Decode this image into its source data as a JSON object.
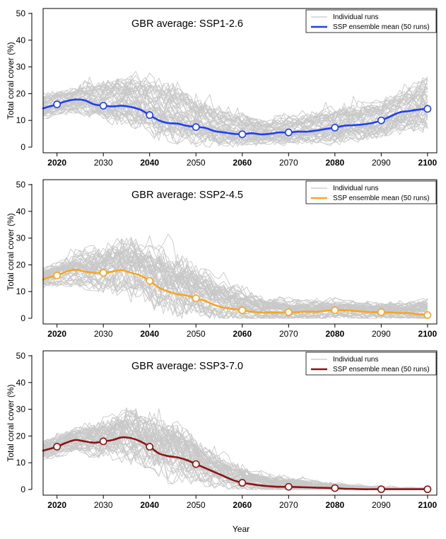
{
  "figure": {
    "xlabel": "Year"
  },
  "colors": {
    "individual_runs": "#c8c8c8",
    "ssp126": "#1f3ff2",
    "ssp245": "#f5a623",
    "ssp370": "#8b1414"
  },
  "chart_data": [
    {
      "type": "line",
      "title": "GBR average: SSP1-2.6",
      "xlabel": "",
      "ylabel": "Total coral cover (%)",
      "xlim": [
        2017,
        2102
      ],
      "ylim": [
        0,
        50
      ],
      "xticks": [
        2020,
        2030,
        2040,
        2050,
        2060,
        2070,
        2080,
        2090,
        2100
      ],
      "xtick_bold": [
        true,
        false,
        true,
        false,
        true,
        false,
        true,
        false,
        true
      ],
      "yticks": [
        0,
        10,
        20,
        30,
        40,
        50
      ],
      "grid": false,
      "legend_position": "top-right",
      "legend": [
        "Individual runs",
        "SSP ensemble mean (50 runs)"
      ],
      "mean_color": "#1f3ff2",
      "runs_color": "#c8c8c8",
      "runs_count": 50,
      "runs_note": "",
      "series": [
        {
          "name": "SSP ensemble mean (50 runs)",
          "x": [
            2017,
            2018,
            2020,
            2022,
            2024,
            2026,
            2028,
            2030,
            2032,
            2034,
            2036,
            2038,
            2040,
            2042,
            2044,
            2046,
            2048,
            2050,
            2052,
            2054,
            2056,
            2058,
            2060,
            2062,
            2064,
            2066,
            2068,
            2070,
            2072,
            2074,
            2076,
            2078,
            2080,
            2082,
            2084,
            2086,
            2088,
            2090,
            2092,
            2094,
            2096,
            2098,
            2100
          ],
          "y": [
            14.5,
            15.0,
            16.0,
            17.2,
            17.8,
            17.5,
            16.0,
            15.5,
            15.2,
            15.5,
            15.0,
            14.0,
            12.0,
            10.0,
            9.0,
            8.8,
            8.0,
            7.5,
            7.2,
            6.0,
            5.5,
            5.0,
            4.8,
            5.2,
            4.8,
            5.0,
            5.5,
            5.5,
            5.8,
            5.8,
            6.2,
            6.8,
            7.3,
            8.0,
            8.2,
            8.5,
            9.0,
            10.0,
            11.5,
            13.0,
            13.5,
            14.0,
            14.3
          ]
        }
      ],
      "markers": {
        "x": [
          2020,
          2030,
          2040,
          2050,
          2060,
          2070,
          2080,
          2090,
          2100
        ],
        "y": [
          16.0,
          15.5,
          12.0,
          7.5,
          4.8,
          5.5,
          7.3,
          10.0,
          14.3
        ]
      },
      "ensemble_band": {
        "x": [
          2017,
          2025,
          2035,
          2045,
          2055,
          2065,
          2075,
          2085,
          2095,
          2100
        ],
        "low": [
          11,
          12,
          9,
          4,
          1.5,
          1,
          1.5,
          2,
          5,
          7
        ],
        "high": [
          19,
          22,
          28,
          25,
          15,
          10,
          13,
          15,
          20,
          28
        ]
      }
    },
    {
      "type": "line",
      "title": "GBR average: SSP2-4.5",
      "xlabel": "",
      "ylabel": "Total coral cover (%)",
      "xlim": [
        2017,
        2102
      ],
      "ylim": [
        0,
        50
      ],
      "xticks": [
        2020,
        2030,
        2040,
        2050,
        2060,
        2070,
        2080,
        2090,
        2100
      ],
      "xtick_bold": [
        true,
        false,
        true,
        false,
        true,
        false,
        true,
        false,
        true
      ],
      "yticks": [
        0,
        10,
        20,
        30,
        40,
        50
      ],
      "grid": false,
      "legend_position": "top-right",
      "legend": [
        "Individual runs",
        "SSP ensemble mean (50 runs)"
      ],
      "mean_color": "#f5a623",
      "runs_color": "#c8c8c8",
      "runs_count": 50,
      "runs_note": "",
      "series": [
        {
          "name": "SSP ensemble mean (50 runs)",
          "x": [
            2017,
            2018,
            2020,
            2022,
            2024,
            2026,
            2028,
            2030,
            2032,
            2034,
            2036,
            2038,
            2040,
            2042,
            2044,
            2046,
            2048,
            2050,
            2052,
            2054,
            2056,
            2058,
            2060,
            2062,
            2064,
            2066,
            2068,
            2070,
            2072,
            2074,
            2076,
            2078,
            2080,
            2082,
            2084,
            2086,
            2088,
            2090,
            2092,
            2094,
            2096,
            2098,
            2100
          ],
          "y": [
            14.5,
            15.2,
            16.0,
            17.5,
            18.2,
            17.5,
            17.0,
            17.0,
            17.5,
            18.0,
            17.0,
            16.0,
            14.0,
            11.5,
            10.0,
            9.0,
            8.5,
            7.5,
            6.5,
            5.0,
            4.0,
            3.5,
            3.0,
            2.5,
            2.2,
            2.2,
            2.2,
            2.3,
            2.3,
            2.5,
            2.5,
            2.8,
            3.0,
            3.0,
            2.8,
            2.5,
            2.3,
            2.3,
            2.2,
            2.0,
            2.0,
            1.5,
            1.2
          ]
        }
      ],
      "markers": {
        "x": [
          2020,
          2030,
          2040,
          2050,
          2060,
          2070,
          2080,
          2090,
          2100
        ],
        "y": [
          16.0,
          17.0,
          14.0,
          7.5,
          3.0,
          2.3,
          3.0,
          2.3,
          1.2
        ]
      },
      "ensemble_band": {
        "x": [
          2017,
          2025,
          2035,
          2045,
          2055,
          2065,
          2075,
          2085,
          2095,
          2100
        ],
        "low": [
          12,
          12,
          9,
          3,
          0.5,
          0,
          0,
          0,
          0,
          0
        ],
        "high": [
          19,
          24,
          31,
          27,
          16,
          8,
          7,
          6,
          6,
          9
        ]
      }
    },
    {
      "type": "line",
      "title": "GBR average: SSP3-7.0",
      "xlabel": "",
      "ylabel": "Total coral cover (%)",
      "xlim": [
        2017,
        2102
      ],
      "ylim": [
        0,
        50
      ],
      "xticks": [
        2020,
        2030,
        2040,
        2050,
        2060,
        2070,
        2080,
        2090,
        2100
      ],
      "xtick_bold": [
        true,
        false,
        true,
        false,
        true,
        false,
        true,
        false,
        true
      ],
      "yticks": [
        0,
        10,
        20,
        30,
        40,
        50
      ],
      "grid": false,
      "legend_position": "top-right",
      "legend": [
        "Individual runs",
        "SSP ensemble mean (50 runs)"
      ],
      "mean_color": "#8b1414",
      "runs_color": "#c8c8c8",
      "runs_count": 50,
      "runs_note": "",
      "series": [
        {
          "name": "SSP ensemble mean (50 runs)",
          "x": [
            2017,
            2018,
            2020,
            2022,
            2024,
            2026,
            2028,
            2030,
            2032,
            2034,
            2036,
            2038,
            2040,
            2042,
            2044,
            2046,
            2048,
            2050,
            2052,
            2054,
            2056,
            2058,
            2060,
            2062,
            2064,
            2066,
            2068,
            2070,
            2072,
            2074,
            2076,
            2078,
            2080,
            2082,
            2084,
            2086,
            2088,
            2090,
            2092,
            2094,
            2096,
            2098,
            2100
          ],
          "y": [
            14.5,
            15.0,
            16.0,
            17.5,
            18.5,
            18.0,
            17.5,
            18.0,
            18.5,
            19.5,
            19.2,
            18.0,
            16.0,
            13.5,
            12.5,
            12.0,
            11.0,
            9.5,
            8.0,
            6.5,
            5.0,
            3.5,
            2.5,
            2.0,
            1.5,
            1.2,
            1.0,
            1.0,
            0.9,
            0.8,
            0.7,
            0.6,
            0.5,
            0.3,
            0.2,
            0.1,
            0.1,
            0.1,
            0.1,
            0.1,
            0.1,
            0.1,
            0.1
          ]
        }
      ],
      "markers": {
        "x": [
          2020,
          2030,
          2040,
          2050,
          2060,
          2070,
          2080,
          2090,
          2100
        ],
        "y": [
          16.0,
          18.0,
          16.0,
          9.5,
          2.5,
          1.0,
          0.5,
          0.1,
          0.1
        ]
      },
      "ensemble_band": {
        "x": [
          2017,
          2025,
          2035,
          2045,
          2055,
          2065,
          2075,
          2085,
          2095,
          2100
        ],
        "low": [
          12,
          13,
          11,
          5,
          1,
          0,
          0,
          0,
          0,
          0
        ],
        "high": [
          19,
          24,
          32,
          30,
          14,
          7,
          4,
          2,
          1,
          1
        ]
      }
    }
  ]
}
